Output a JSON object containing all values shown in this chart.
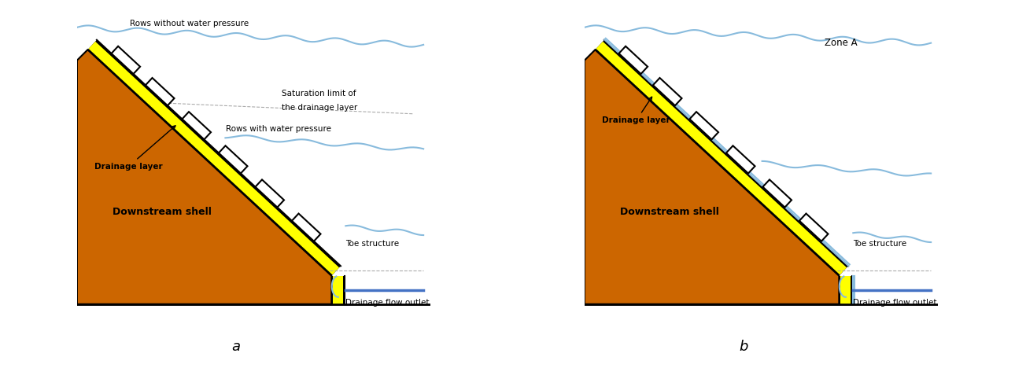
{
  "fig_width": 12.9,
  "fig_height": 4.68,
  "bg_color": "#ffffff",
  "orange_fill": "#cc6600",
  "yellow_fill": "#ffff00",
  "black_color": "#000000",
  "blue_line": "#4472c4",
  "light_blue": "#88bbdd",
  "gray_dashed": "#aaaaaa",
  "panel_a": {
    "label": "a",
    "rows_without": "Rows without water pressure",
    "saturation_limit_1": "Saturation limit of",
    "saturation_limit_2": "the drainage layer",
    "rows_with": "Rows with water pressure",
    "drainage_layer": "Drainage layer",
    "downstream_shell": "Downstream shell",
    "toe_structure": "Toe structure",
    "drainage_outlet": "Drainage flow outlet"
  },
  "panel_b": {
    "label": "b",
    "zone_a": "Zone A",
    "drainage_layer": "Drainage layer",
    "downstream_shell": "Downstream shell",
    "toe_structure": "Toe structure",
    "drainage_outlet": "Drainage flow outlet"
  }
}
